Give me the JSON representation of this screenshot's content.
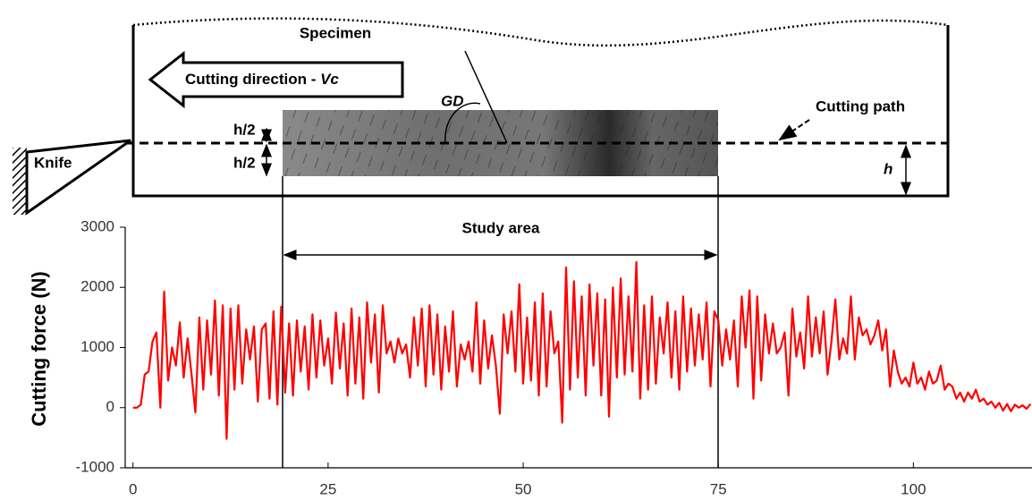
{
  "diagram": {
    "specimen": "Specimen",
    "direction": "Cutting direction - ",
    "direction_symbol": "Vc",
    "grain": "GD",
    "path": "Cutting path",
    "knife": "Knife",
    "half_depth": "h/2",
    "depth": "h",
    "study_area": "Study area"
  },
  "chart_data": {
    "type": "line",
    "ylabel": "Cutting force (N)",
    "color": "#ff0000",
    "xlim": [
      -1,
      115.2
    ],
    "ylim": [
      -1000,
      3000
    ],
    "xticks": [
      0,
      25,
      50,
      75,
      100
    ],
    "yticks": [
      -1000,
      0,
      1000,
      2000,
      3000
    ],
    "x": [
      0,
      0.5,
      1,
      1.5,
      2,
      2.5,
      3,
      3.5,
      4,
      4.5,
      5,
      5.5,
      6,
      6.5,
      7,
      7.5,
      8,
      8.5,
      9,
      9.5,
      10,
      10.5,
      11,
      11.5,
      12,
      12.5,
      13,
      13.5,
      14,
      14.5,
      15,
      15.5,
      16,
      16.5,
      17,
      17.5,
      18,
      18.5,
      19,
      19.5,
      20,
      20.5,
      21,
      21.5,
      22,
      22.5,
      23,
      23.5,
      24,
      24.5,
      25,
      25.5,
      26,
      26.5,
      27,
      27.5,
      28,
      28.5,
      29,
      29.5,
      30,
      30.5,
      31,
      31.5,
      32,
      32.5,
      33,
      33.5,
      34,
      34.5,
      35,
      35.5,
      36,
      36.5,
      37,
      37.5,
      38,
      38.5,
      39,
      39.5,
      40,
      40.5,
      41,
      41.5,
      42,
      42.5,
      43,
      43.5,
      44,
      44.5,
      45,
      45.5,
      46,
      46.5,
      47,
      47.5,
      48,
      48.5,
      49,
      49.5,
      50,
      50.5,
      51,
      51.5,
      52,
      52.5,
      53,
      53.5,
      54,
      54.5,
      55,
      55.5,
      56,
      56.5,
      57,
      57.5,
      58,
      58.5,
      59,
      59.5,
      60,
      60.5,
      61,
      61.5,
      62,
      62.5,
      63,
      63.5,
      64,
      64.5,
      65,
      65.5,
      66,
      66.5,
      67,
      67.5,
      68,
      68.5,
      69,
      69.5,
      70,
      70.5,
      71,
      71.5,
      72,
      72.5,
      73,
      73.5,
      74,
      74.5,
      75,
      75.5,
      76,
      76.5,
      77,
      77.5,
      78,
      78.5,
      79,
      79.5,
      80,
      80.5,
      81,
      81.5,
      82,
      82.5,
      83,
      83.5,
      84,
      84.5,
      85,
      85.5,
      86,
      86.5,
      87,
      87.5,
      88,
      88.5,
      89,
      89.5,
      90,
      90.5,
      91,
      91.5,
      92,
      92.5,
      93,
      93.5,
      94,
      94.5,
      95,
      95.5,
      96,
      96.5,
      97,
      97.5,
      98,
      98.5,
      99,
      99.5,
      100,
      100.5,
      101,
      101.5,
      102,
      102.5,
      103,
      103.5,
      104,
      104.5,
      105,
      105.5,
      106,
      106.5,
      107,
      107.5,
      108,
      108.5,
      109,
      109.5,
      110,
      110.5,
      111,
      111.5,
      112,
      112.5,
      113,
      113.5,
      114,
      114.5,
      115
    ],
    "values": [
      0,
      0,
      50,
      550,
      600,
      1100,
      1250,
      0,
      1930,
      450,
      1000,
      700,
      1420,
      500,
      1150,
      550,
      -80,
      1500,
      300,
      1450,
      550,
      1780,
      200,
      1700,
      -520,
      1650,
      300,
      1700,
      400,
      1300,
      800,
      1350,
      100,
      1300,
      1400,
      150,
      1600,
      50,
      1680,
      250,
      1400,
      200,
      1450,
      600,
      1350,
      300,
      1550,
      500,
      1450,
      700,
      1150,
      400,
      1580,
      650,
      1400,
      200,
      1650,
      400,
      1500,
      150,
      1750,
      750,
      1550,
      250,
      1700,
      900,
      1100,
      750,
      1150,
      900,
      1050,
      500,
      1500,
      700,
      1650,
      350,
      1700,
      550,
      1550,
      300,
      1350,
      600,
      1600,
      350,
      1050,
      800,
      1100,
      600,
      1750,
      400,
      1450,
      650,
      1200,
      700,
      -100,
      1550,
      900,
      1600,
      600,
      2050,
      400,
      1500,
      450,
      1750,
      200,
      1900,
      350,
      1600,
      900,
      1100,
      -250,
      2330,
      300,
      2100,
      500,
      1850,
      200,
      2050,
      700,
      1900,
      200,
      1800,
      -150,
      2000,
      500,
      2150,
      550,
      1850,
      600,
      2420,
      150,
      1700,
      300,
      1850,
      400,
      1500,
      900,
      1750,
      500,
      1600,
      300,
      1850,
      600,
      1650,
      700,
      1550,
      800,
      1750,
      350,
      1600,
      1450,
      700,
      1300,
      800,
      1450,
      350,
      1850,
      1000,
      1950,
      150,
      1850,
      450,
      1550,
      900,
      1400,
      900,
      1000,
      1250,
      200,
      1650,
      850,
      1250,
      650,
      1850,
      850,
      1500,
      900,
      1600,
      550,
      1100,
      1800,
      800,
      1150,
      900,
      1850,
      800,
      1500,
      1200,
      1300,
      1050,
      1200,
      1450,
      950,
      1300,
      350,
      950,
      600,
      400,
      500,
      350,
      750,
      400,
      500,
      300,
      600,
      400,
      450,
      700,
      300,
      400,
      350,
      150,
      250,
      100,
      250,
      150,
      300,
      100,
      150,
      50,
      100,
      0,
      80,
      -50,
      60,
      -60,
      50,
      0,
      40,
      -20,
      60
    ]
  }
}
